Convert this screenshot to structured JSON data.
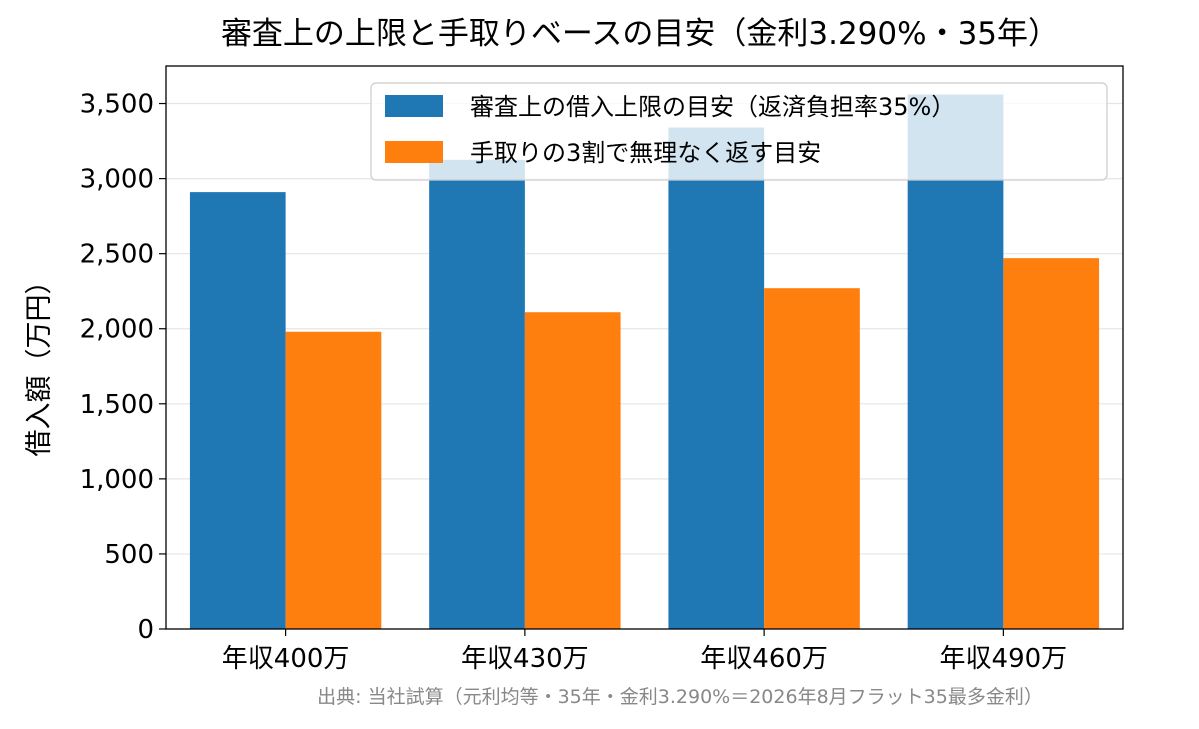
{
  "chart_data": {
    "type": "bar",
    "title": "審査上の上限と手取りベースの目安（金利3.290%・35年）",
    "ylabel": "借入額（万円）",
    "xlabel": "",
    "categories": [
      "年収400万",
      "年収430万",
      "年収460万",
      "年収490万"
    ],
    "series": [
      {
        "name": "審査上の借入上限の目安（返済負担率35%）",
        "color": "#1f77b4",
        "values": [
          2910,
          3125,
          3340,
          3560
        ]
      },
      {
        "name": "手取りの3割で無理なく返す目安",
        "color": "#ff7f0e",
        "values": [
          1980,
          2110,
          2270,
          2470
        ]
      }
    ],
    "ylim": [
      0,
      3750
    ],
    "yticks": [
      0,
      500,
      1000,
      1500,
      2000,
      2500,
      3000,
      3500
    ],
    "ytick_labels": [
      "0",
      "500",
      "1,000",
      "1,500",
      "2,000",
      "2,500",
      "3,000",
      "3,500"
    ],
    "grid": "horizontal",
    "legend_position": "top-right",
    "source_note": "出典: 当社試算（元利均等・35年・金利3.290%＝2026年8月フラット35最多金利）"
  }
}
